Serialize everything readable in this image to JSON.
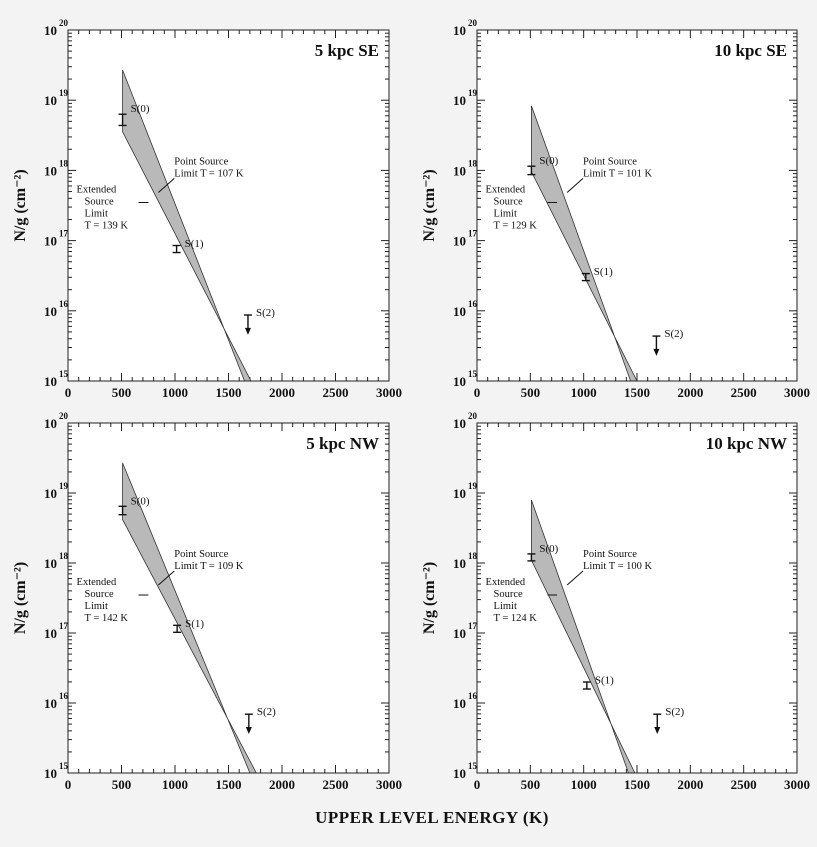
{
  "chart_data": {
    "type": "scatter",
    "xlabel": "UPPER LEVEL ENERGY (K)",
    "ylabel": "N/g (cm⁻²)",
    "xlim": [
      0,
      3000
    ],
    "x_ticks": [
      0,
      500,
      1000,
      1500,
      2000,
      2500,
      3000
    ],
    "panels": [
      {
        "title": "5 kpc SE",
        "ylim_log10": [
          15,
          20
        ],
        "points": [
          {
            "label": "S(0)",
            "x": 510,
            "y_log10": 18.72,
            "err_low": 0.08,
            "err_high": 0.08,
            "upper_limit": false
          },
          {
            "label": "S(1)",
            "x": 1015,
            "y_log10": 16.88,
            "err_low": 0.05,
            "err_high": 0.05,
            "upper_limit": false
          },
          {
            "label": "S(2)",
            "x": 1682,
            "y_log10": 15.82,
            "err_low": 0.0,
            "err_high": 0.12,
            "upper_limit": true
          }
        ],
        "band": {
          "x_start": 510,
          "upper_start": 19.43,
          "lower_start": 18.55,
          "x_end": 1650,
          "upper_end": 15.0,
          "lower_end": 15.0
        },
        "annotations": {
          "point_source": [
            "Point Source",
            "Limit T = 107 K"
          ],
          "extended_source": [
            "Extended",
            "Source",
            "Limit",
            "T = 139 K"
          ]
        }
      },
      {
        "title": "10 kpc SE",
        "ylim_log10": [
          15,
          20
        ],
        "points": [
          {
            "label": "S(0)",
            "x": 510,
            "y_log10": 18.0,
            "err_low": 0.06,
            "err_high": 0.06,
            "upper_limit": false
          },
          {
            "label": "S(1)",
            "x": 1020,
            "y_log10": 16.48,
            "err_low": 0.05,
            "err_high": 0.05,
            "upper_limit": false
          },
          {
            "label": "S(2)",
            "x": 1682,
            "y_log10": 15.52,
            "err_low": 0.0,
            "err_high": 0.12,
            "upper_limit": true
          }
        ],
        "band": {
          "x_start": 510,
          "upper_start": 18.92,
          "lower_start": 17.98,
          "x_end": 1440,
          "upper_end": 15.0,
          "lower_end": 15.0
        },
        "annotations": {
          "point_source": [
            "Point Source",
            "Limit T = 101 K"
          ],
          "extended_source": [
            "Extended",
            "Source",
            "Limit",
            "T = 129 K"
          ]
        }
      },
      {
        "title": "5 kpc NW",
        "ylim_log10": [
          15,
          20
        ],
        "points": [
          {
            "label": "S(0)",
            "x": 510,
            "y_log10": 18.75,
            "err_low": 0.06,
            "err_high": 0.06,
            "upper_limit": false
          },
          {
            "label": "S(1)",
            "x": 1020,
            "y_log10": 17.06,
            "err_low": 0.05,
            "err_high": 0.05,
            "upper_limit": false
          },
          {
            "label": "S(2)",
            "x": 1690,
            "y_log10": 15.72,
            "err_low": 0.0,
            "err_high": 0.12,
            "upper_limit": true
          }
        ],
        "band": {
          "x_start": 510,
          "upper_start": 19.43,
          "lower_start": 18.62,
          "x_end": 1700,
          "upper_end": 15.0,
          "lower_end": 15.0
        },
        "annotations": {
          "point_source": [
            "Point Source",
            "Limit T = 109 K"
          ],
          "extended_source": [
            "Extended",
            "Source",
            "Limit",
            "T = 142 K"
          ]
        }
      },
      {
        "title": "10 kpc NW",
        "ylim_log10": [
          15,
          20
        ],
        "points": [
          {
            "label": "S(0)",
            "x": 510,
            "y_log10": 18.08,
            "err_low": 0.05,
            "err_high": 0.05,
            "upper_limit": false
          },
          {
            "label": "S(1)",
            "x": 1030,
            "y_log10": 16.25,
            "err_low": 0.05,
            "err_high": 0.05,
            "upper_limit": false
          },
          {
            "label": "S(2)",
            "x": 1690,
            "y_log10": 15.72,
            "err_low": 0.0,
            "err_high": 0.12,
            "upper_limit": true
          }
        ],
        "band": {
          "x_start": 510,
          "upper_start": 18.9,
          "lower_start": 18.04,
          "x_end": 1420,
          "upper_end": 15.0,
          "lower_end": 15.0
        },
        "annotations": {
          "point_source": [
            "Point Source",
            "Limit T = 100 K"
          ],
          "extended_source": [
            "Extended",
            "Source",
            "Limit",
            "T = 124 K"
          ]
        }
      }
    ]
  }
}
